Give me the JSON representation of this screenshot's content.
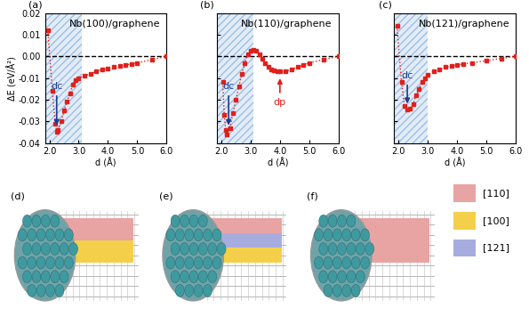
{
  "chart_data": [
    {
      "type": "line",
      "panel_label": "(a)",
      "title": "Nb(100)/graphene",
      "x_label": "d (Å)",
      "y_label": "ΔE (eV/Å²)",
      "x": [
        1.95,
        2.1,
        2.2,
        2.25,
        2.3,
        2.4,
        2.5,
        2.6,
        2.7,
        2.8,
        2.9,
        3.0,
        3.2,
        3.4,
        3.6,
        3.8,
        4.0,
        4.2,
        4.4,
        4.6,
        4.8,
        5.0,
        5.5,
        6.0
      ],
      "values": [
        0.012,
        -0.016,
        -0.031,
        -0.035,
        -0.034,
        -0.03,
        -0.025,
        -0.021,
        -0.017,
        -0.013,
        -0.011,
        -0.01,
        -0.009,
        -0.008,
        -0.007,
        -0.006,
        -0.0055,
        -0.005,
        -0.0045,
        -0.004,
        -0.0035,
        -0.003,
        -0.0015,
        0.0
      ],
      "color": "#e0201b",
      "marker": "square",
      "line_style": "dotted",
      "xlim": [
        1.85,
        6.0
      ],
      "xticks": [
        {
          "value": 2,
          "label": "2.0"
        },
        {
          "value": 3,
          "label": "3.0"
        },
        {
          "value": 4,
          "label": "4.0"
        },
        {
          "value": 5,
          "label": "5.0"
        },
        {
          "value": 6,
          "label": "6.0"
        }
      ],
      "ylim": [
        -0.04,
        0.02
      ],
      "yticks": [
        -0.04,
        -0.03,
        -0.02,
        -0.01,
        {
          "value": 0,
          "label": "0.00"
        },
        0.01,
        0.02
      ],
      "shade": [
        1.85,
        3.1
      ],
      "hline": 0,
      "annotations": [
        {
          "text": "dc",
          "x": 2.25,
          "y": -0.033,
          "text_y": -0.016,
          "color": "#1a3d8f"
        }
      ]
    },
    {
      "type": "line",
      "panel_label": "(b)",
      "title": "Nb(110)/graphene",
      "x_label": "d (Å)",
      "x": [
        2.05,
        2.1,
        2.15,
        2.2,
        2.3,
        2.4,
        2.5,
        2.6,
        2.7,
        2.8,
        2.9,
        3.0,
        3.1,
        3.2,
        3.3,
        3.4,
        3.5,
        3.6,
        3.7,
        3.8,
        3.9,
        4.0,
        4.2,
        4.4,
        4.6,
        4.8,
        5.0,
        5.5,
        6.0
      ],
      "values": [
        -0.012,
        -0.027,
        -0.034,
        -0.036,
        -0.033,
        -0.026,
        -0.02,
        -0.014,
        -0.008,
        -0.003,
        0.001,
        0.0025,
        0.003,
        0.0025,
        0.001,
        -0.001,
        -0.003,
        -0.005,
        -0.006,
        -0.0065,
        -0.007,
        -0.007,
        -0.0068,
        -0.006,
        -0.005,
        -0.004,
        -0.003,
        -0.0015,
        0.0
      ],
      "color": "#e0201b",
      "marker": "square",
      "line_style": "dotted",
      "xlim": [
        1.85,
        6.0
      ],
      "xticks": [
        {
          "value": 2,
          "label": "2.0"
        },
        {
          "value": 3,
          "label": "3.0"
        },
        {
          "value": 4,
          "label": "4.0"
        },
        {
          "value": 5,
          "label": "5.0"
        },
        {
          "value": 6,
          "label": "6.0"
        }
      ],
      "ylim": [
        -0.04,
        0.02
      ],
      "yticks": [
        -0.04,
        -0.03,
        -0.02,
        -0.01,
        {
          "value": 0,
          "label": "0.00"
        },
        0.01,
        0.02
      ],
      "tick_labels": "x",
      "shade": [
        1.85,
        3.1
      ],
      "hline": 0,
      "annotations": [
        {
          "text": "dc",
          "x": 2.25,
          "y": -0.033,
          "text_y": -0.016,
          "color": "#1a3d8f"
        },
        {
          "text": "dp",
          "x": 4.0,
          "y": -0.009,
          "text_y": -0.019,
          "color": "#e0201b"
        }
      ]
    },
    {
      "type": "line",
      "panel_label": "(c)",
      "title": "Nb(121)/graphene",
      "x_label": "d (Å)",
      "x": [
        1.95,
        2.1,
        2.2,
        2.3,
        2.4,
        2.5,
        2.6,
        2.7,
        2.8,
        2.9,
        3.0,
        3.2,
        3.4,
        3.6,
        3.8,
        4.0,
        4.2,
        4.5,
        5.0,
        5.5,
        6.0
      ],
      "values": [
        0.014,
        -0.012,
        -0.023,
        -0.0245,
        -0.024,
        -0.022,
        -0.018,
        -0.015,
        -0.012,
        -0.01,
        -0.0085,
        -0.007,
        -0.006,
        -0.005,
        -0.0045,
        -0.004,
        -0.0035,
        -0.003,
        -0.002,
        -0.001,
        0.0
      ],
      "color": "#e0201b",
      "marker": "square",
      "line_style": "dotted",
      "xlim": [
        1.85,
        6.0
      ],
      "xticks": [
        {
          "value": 2,
          "label": "2.0"
        },
        {
          "value": 3,
          "label": "3.0"
        },
        {
          "value": 4,
          "label": "4.0"
        },
        {
          "value": 5,
          "label": "5.0"
        },
        {
          "value": 6,
          "label": "6.0"
        }
      ],
      "ylim": [
        -0.04,
        0.02
      ],
      "yticks": [
        -0.04,
        -0.03,
        -0.02,
        -0.01,
        {
          "value": 0,
          "label": "0.00"
        },
        0.01,
        0.02
      ],
      "tick_labels": "x",
      "shade": [
        1.85,
        3.0
      ],
      "hline": 0,
      "annotations": [
        {
          "text": "dc",
          "x": 2.3,
          "y": -0.023,
          "text_y": -0.011,
          "color": "#1a3d8f"
        }
      ]
    }
  ],
  "nanowires": [
    {
      "panel_label": "(d)",
      "facets": [
        "[110]",
        "[100]"
      ]
    },
    {
      "panel_label": "(e)",
      "facets": [
        "[110]",
        "[121]",
        "[100]"
      ]
    },
    {
      "panel_label": "(f)",
      "facets": [
        "[110]"
      ]
    }
  ],
  "facet_legend": [
    {
      "label": "[110]",
      "color": "#e8a3a3"
    },
    {
      "label": "[100]",
      "color": "#f4d04a"
    },
    {
      "label": "[121]",
      "color": "#a7acdf"
    }
  ]
}
